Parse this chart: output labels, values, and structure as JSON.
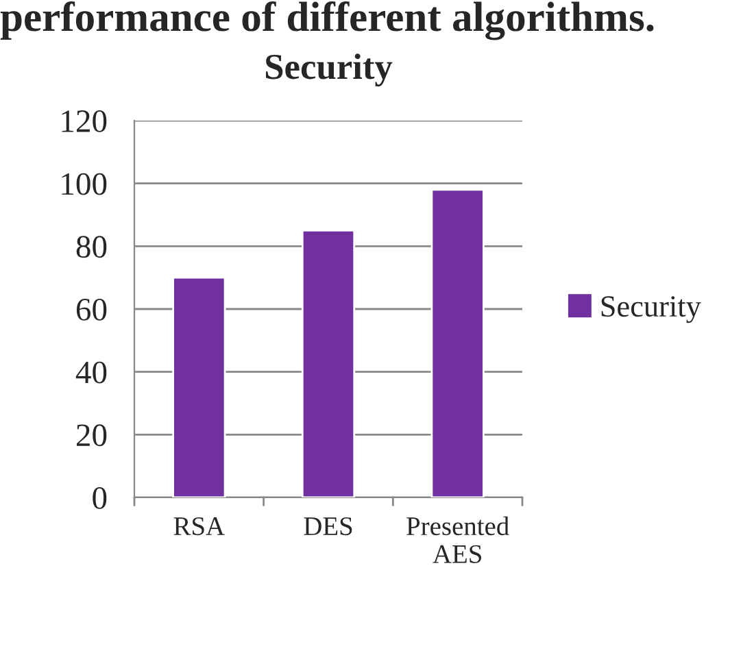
{
  "chart_data": {
    "type": "bar",
    "title": "Security",
    "annotations": [
      "performance of different algorithms."
    ],
    "categories": [
      "RSA",
      "DES",
      "Presented\nAES"
    ],
    "series": [
      {
        "name": "Security",
        "color": "#7030a0",
        "values": [
          70,
          85,
          98
        ]
      }
    ],
    "ylim": [
      0,
      120
    ],
    "yticks": [
      0,
      20,
      40,
      60,
      80,
      100,
      120
    ],
    "grid": "y",
    "legend": "right"
  }
}
